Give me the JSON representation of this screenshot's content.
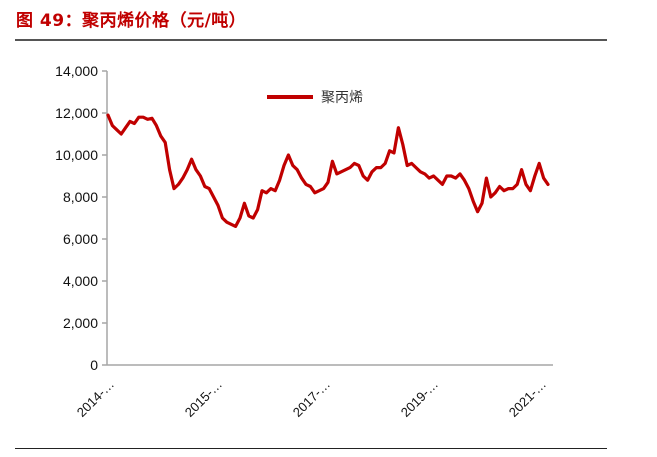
{
  "header": {
    "title": "图 49：聚丙烯价格（元/吨）"
  },
  "chart_data": {
    "type": "line",
    "title": "图 49：聚丙烯价格（元/吨）",
    "xlabel": "",
    "ylabel": "",
    "ylim": [
      0,
      14000
    ],
    "y_ticks": [
      "0",
      "2,000",
      "4,000",
      "6,000",
      "8,000",
      "10,000",
      "12,000",
      "14,000"
    ],
    "y_tick_values": [
      0,
      2000,
      4000,
      6000,
      8000,
      10000,
      12000,
      14000
    ],
    "x_tick_labels": [
      "2014-…",
      "2015-…",
      "2017-…",
      "2019-…",
      "2021-…"
    ],
    "grid": false,
    "legend": {
      "position": "top-center",
      "entries": [
        "聚丙烯"
      ]
    },
    "series_color": "#c00000",
    "series": [
      {
        "name": "聚丙烯",
        "x": [
          0,
          0.01,
          0.02,
          0.03,
          0.04,
          0.05,
          0.06,
          0.07,
          0.08,
          0.09,
          0.1,
          0.11,
          0.12,
          0.13,
          0.14,
          0.15,
          0.16,
          0.17,
          0.18,
          0.19,
          0.2,
          0.21,
          0.22,
          0.23,
          0.24,
          0.25,
          0.26,
          0.27,
          0.28,
          0.29,
          0.3,
          0.31,
          0.32,
          0.33,
          0.34,
          0.35,
          0.36,
          0.37,
          0.38,
          0.39,
          0.4,
          0.41,
          0.42,
          0.43,
          0.44,
          0.45,
          0.46,
          0.47,
          0.48,
          0.49,
          0.5,
          0.51,
          0.52,
          0.53,
          0.54,
          0.55,
          0.56,
          0.57,
          0.58,
          0.59,
          0.6,
          0.61,
          0.62,
          0.63,
          0.64,
          0.65,
          0.66,
          0.67,
          0.68,
          0.69,
          0.7,
          0.71,
          0.72,
          0.73,
          0.74,
          0.75,
          0.76,
          0.77,
          0.78,
          0.79,
          0.8,
          0.81,
          0.82,
          0.83,
          0.84,
          0.85,
          0.86,
          0.87,
          0.88,
          0.89,
          0.9,
          0.91,
          0.92,
          0.93,
          0.94,
          0.95,
          0.96,
          0.97,
          0.98,
          0.99,
          1.0
        ],
        "values": [
          11900,
          11400,
          11200,
          11000,
          11300,
          11600,
          11500,
          11800,
          11800,
          11700,
          11750,
          11400,
          10900,
          10600,
          9300,
          8400,
          8600,
          8900,
          9300,
          9800,
          9300,
          9000,
          8500,
          8400,
          8000,
          7600,
          7000,
          6800,
          6700,
          6600,
          7000,
          7700,
          7100,
          7000,
          7400,
          8300,
          8200,
          8400,
          8300,
          8800,
          9500,
          10000,
          9500,
          9300,
          8900,
          8600,
          8500,
          8200,
          8300,
          8400,
          8700,
          9700,
          9100,
          9200,
          9300,
          9400,
          9600,
          9500,
          9000,
          8800,
          9200,
          9400,
          9400,
          9600,
          10200,
          10100,
          11300,
          10500,
          9500,
          9600,
          9400,
          9200,
          9100,
          8900,
          9000,
          8800,
          8600,
          9000,
          9000,
          8900,
          9100,
          8800,
          8400,
          7800,
          7300,
          7700,
          8900,
          8000,
          8200,
          8500,
          8300,
          8400,
          8400,
          8600,
          9300,
          8600,
          8300,
          9000,
          9600,
          8900,
          8600
        ],
        "x_description": "normalized time position 0 (early 2014) to 1 (2021)"
      }
    ]
  }
}
